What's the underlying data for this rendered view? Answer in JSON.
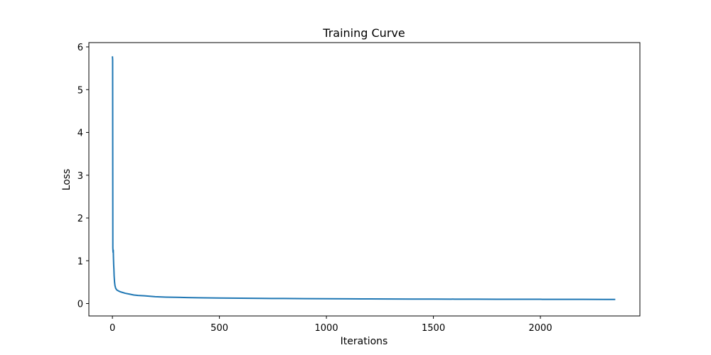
{
  "chart_data": {
    "type": "line",
    "title": "Training Curve",
    "xlabel": "Iterations",
    "ylabel": "Loss",
    "xlim": [
      -110,
      2465
    ],
    "ylim": [
      -0.29,
      6.1
    ],
    "xticks": [
      0,
      500,
      1000,
      1500,
      2000
    ],
    "yticks": [
      0,
      1,
      2,
      3,
      4,
      5,
      6
    ],
    "grid": false,
    "line_color": "#1f77b4",
    "series": [
      {
        "x": [
          0,
          1,
          2,
          3,
          4,
          5,
          6,
          7,
          8,
          10,
          12,
          15,
          20,
          30,
          40,
          60,
          80,
          100,
          120,
          150,
          200,
          250,
          300,
          350,
          400,
          500,
          600,
          700,
          800,
          900,
          1000,
          1100,
          1200,
          1300,
          1400,
          1500,
          1600,
          1700,
          1800,
          1900,
          2000,
          2100,
          2200,
          2300,
          2350
        ],
        "y": [
          5.78,
          5.7,
          1.3,
          1.2,
          1.25,
          1.05,
          0.9,
          0.8,
          0.65,
          0.5,
          0.42,
          0.36,
          0.32,
          0.29,
          0.27,
          0.24,
          0.22,
          0.2,
          0.19,
          0.18,
          0.16,
          0.15,
          0.145,
          0.14,
          0.135,
          0.13,
          0.125,
          0.12,
          0.118,
          0.115,
          0.112,
          0.11,
          0.108,
          0.106,
          0.105,
          0.104,
          0.103,
          0.102,
          0.101,
          0.1,
          0.099,
          0.098,
          0.097,
          0.096,
          0.095
        ]
      }
    ]
  }
}
